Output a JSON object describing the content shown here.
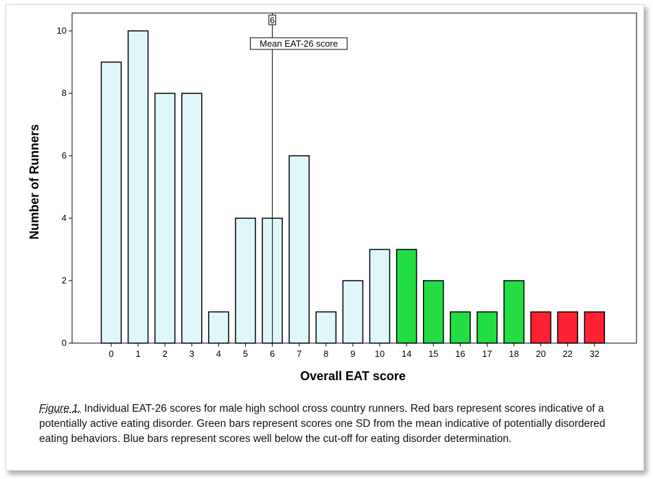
{
  "chart_data": {
    "type": "bar",
    "xlabel": "Overall EAT score",
    "ylabel": "Number of Runners",
    "ylim": [
      0,
      10
    ],
    "yticks": [
      0,
      2,
      4,
      6,
      8,
      10
    ],
    "categories": [
      "0",
      "1",
      "2",
      "3",
      "4",
      "5",
      "6",
      "7",
      "8",
      "9",
      "10",
      "14",
      "15",
      "16",
      "17",
      "18",
      "20",
      "22",
      "32"
    ],
    "values": [
      9,
      10,
      8,
      8,
      1,
      4,
      4,
      6,
      1,
      2,
      3,
      3,
      2,
      1,
      1,
      2,
      1,
      1,
      1
    ],
    "bar_groups": [
      "blue",
      "blue",
      "blue",
      "blue",
      "blue",
      "blue",
      "blue",
      "blue",
      "blue",
      "blue",
      "blue",
      "green",
      "green",
      "green",
      "green",
      "green",
      "red",
      "red",
      "red"
    ],
    "colors": {
      "blue": "#dff7fb",
      "green": "#22dd44",
      "red": "#ff2233",
      "outline": "#000000"
    },
    "mean_line": {
      "category": "6",
      "label": "Mean EAT-26 score",
      "marker": "6"
    },
    "grid": false
  },
  "caption": {
    "figure_label": "Figure 1.",
    "text": " Individual EAT-26 scores for male high school cross country runners.  Red bars represent scores indicative of a potentially active eating disorder.  Green bars represent scores one SD from the mean indicative of potentially disordered eating behaviors.  Blue bars represent scores well below the cut-off for eating disorder determination."
  }
}
